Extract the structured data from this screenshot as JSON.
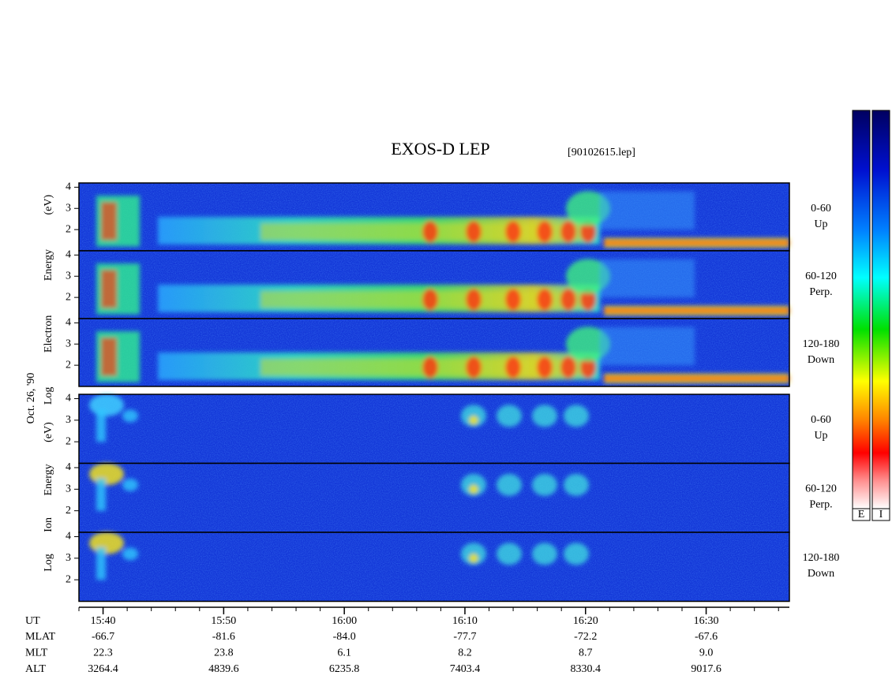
{
  "chart_data": {
    "type": "spectrogram",
    "title": "EXOS-D LEP",
    "file": "[90102615.lep]",
    "date": "Oct. 26, '90",
    "ylim": [
      1,
      4.2
    ],
    "yticks": [
      2,
      3,
      4
    ],
    "xlim": [
      38,
      96.9
    ],
    "xticks": [
      {
        "value": 40,
        "label": "15:40"
      },
      {
        "value": 50,
        "label": "15:50"
      },
      {
        "value": 60,
        "label": "16:00"
      },
      {
        "value": 70,
        "label": "16:10"
      },
      {
        "value": 80,
        "label": "16:20"
      },
      {
        "value": 90,
        "label": "16:30"
      }
    ],
    "xminor": [
      38,
      42,
      44,
      46,
      48,
      52,
      54,
      56,
      58,
      62,
      64,
      66,
      68,
      72,
      74,
      76,
      78,
      82,
      84,
      86,
      88,
      92,
      94,
      96
    ],
    "groups": [
      {
        "species": "E",
        "ylabel": "Log Electron Energy (eV)",
        "panels": [
          {
            "range": "0-60",
            "dir": "Up"
          },
          {
            "range": "60-120",
            "dir": "Perp."
          },
          {
            "range": "120-180",
            "dir": "Down"
          }
        ]
      },
      {
        "species": "I",
        "ylabel": "Log Ion Energy (eV)",
        "panels": [
          {
            "range": "0-60",
            "dir": "Up"
          },
          {
            "range": "60-120",
            "dir": "Perp."
          },
          {
            "range": "120-180",
            "dir": "Down"
          }
        ]
      }
    ],
    "ut_label": "UT",
    "ephemeris": [
      {
        "name": "MLAT",
        "values": [
          "-66.7",
          "-81.6",
          "-84.0",
          "-77.7",
          "-72.2",
          "-67.6"
        ]
      },
      {
        "name": "MLT",
        "values": [
          "22.3",
          "23.8",
          "6.1",
          "8.2",
          "8.7",
          "9.0"
        ]
      },
      {
        "name": "ALT",
        "values": [
          "3264.4",
          "4839.6",
          "6235.8",
          "7403.4",
          "8330.4",
          "9017.6"
        ]
      }
    ]
  }
}
